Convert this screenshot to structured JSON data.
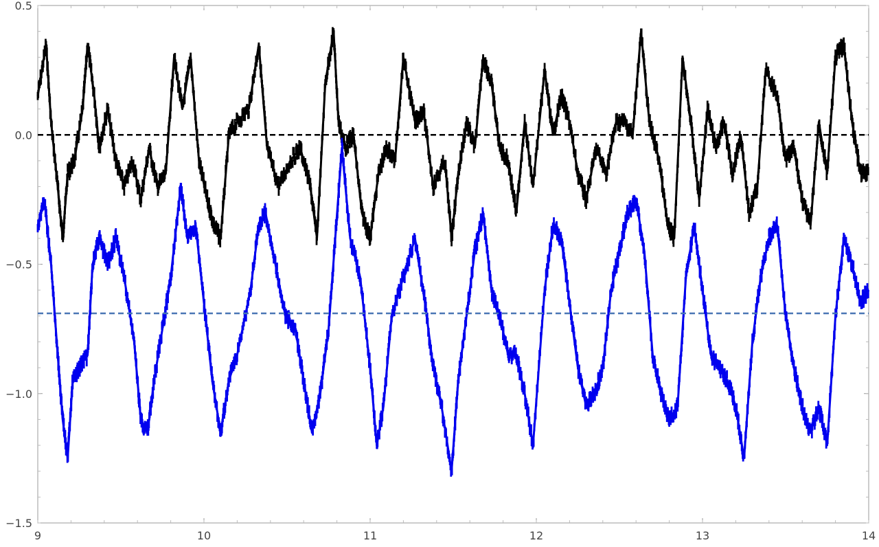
{
  "chart_data": {
    "type": "scatter",
    "title": "",
    "xlabel": "",
    "ylabel": "",
    "xlim": [
      9,
      14
    ],
    "ylim": [
      -1.5,
      0.5
    ],
    "x_ticks": [
      9,
      10,
      11,
      12,
      13,
      14
    ],
    "x_tick_labels": [
      "9",
      "10",
      "11",
      "12",
      "13",
      "14"
    ],
    "y_ticks": [
      0.5,
      0.0,
      -0.5,
      -1.0,
      -1.5
    ],
    "y_tick_labels": [
      "0.5",
      "0.0",
      "-0.5",
      "-1.0",
      "-1.5"
    ],
    "grid": false,
    "legend": "none",
    "reference_lines": [
      {
        "y": 0.0,
        "color": "#000000",
        "style": "dashed"
      },
      {
        "y": -0.69,
        "color": "#4a76b5",
        "style": "dashed"
      }
    ],
    "series": [
      {
        "color": "#000000",
        "marker": "dot",
        "x": [
          9.0,
          9.05,
          9.08,
          9.12,
          9.15,
          9.18,
          9.22,
          9.27,
          9.3,
          9.34,
          9.37,
          9.42,
          9.47,
          9.52,
          9.57,
          9.62,
          9.67,
          9.72,
          9.77,
          9.82,
          9.87,
          9.92,
          9.97,
          10.02,
          10.06,
          10.1,
          10.15,
          10.2,
          10.27,
          10.33,
          10.38,
          10.45,
          10.52,
          10.58,
          10.64,
          10.68,
          10.73,
          10.78,
          10.81,
          10.85,
          10.9,
          10.95,
          11.0,
          11.05,
          11.1,
          11.15,
          11.2,
          11.27,
          11.32,
          11.38,
          11.45,
          11.49,
          11.53,
          11.58,
          11.63,
          11.68,
          11.73,
          11.78,
          11.83,
          11.88,
          11.93,
          11.98,
          12.05,
          12.1,
          12.15,
          12.2,
          12.25,
          12.3,
          12.36,
          12.42,
          12.48,
          12.53,
          12.58,
          12.63,
          12.68,
          12.74,
          12.79,
          12.83,
          12.88,
          12.93,
          12.98,
          13.03,
          13.08,
          13.13,
          13.18,
          13.23,
          13.28,
          13.33,
          13.38,
          13.45,
          13.5,
          13.55,
          13.6,
          13.65,
          13.7,
          13.75,
          13.8,
          13.85,
          13.9,
          13.95,
          14.0
        ],
        "y": [
          0.15,
          0.35,
          0.05,
          -0.2,
          -0.4,
          -0.15,
          -0.1,
          0.1,
          0.35,
          0.15,
          -0.05,
          0.1,
          -0.1,
          -0.2,
          -0.1,
          -0.25,
          -0.05,
          -0.2,
          -0.15,
          0.3,
          0.1,
          0.3,
          -0.1,
          -0.25,
          -0.35,
          -0.4,
          0.0,
          0.05,
          0.1,
          0.35,
          -0.05,
          -0.2,
          -0.1,
          -0.05,
          -0.2,
          -0.4,
          0.2,
          0.4,
          0.05,
          -0.05,
          0.0,
          -0.3,
          -0.4,
          -0.15,
          -0.05,
          -0.1,
          0.3,
          0.05,
          0.1,
          -0.2,
          -0.1,
          -0.4,
          -0.15,
          0.05,
          -0.05,
          0.3,
          0.2,
          -0.05,
          -0.1,
          -0.3,
          0.05,
          -0.2,
          0.25,
          0.0,
          0.15,
          0.05,
          -0.15,
          -0.25,
          -0.05,
          -0.15,
          0.05,
          0.05,
          0.0,
          0.4,
          0.05,
          -0.1,
          -0.35,
          -0.4,
          0.3,
          0.05,
          -0.25,
          0.1,
          -0.05,
          0.05,
          -0.15,
          0.0,
          -0.3,
          -0.2,
          0.25,
          0.15,
          -0.1,
          -0.05,
          -0.25,
          -0.35,
          0.05,
          -0.15,
          0.3,
          0.35,
          0.05,
          -0.15,
          -0.15
        ]
      },
      {
        "color": "#0000ee",
        "marker": "dot",
        "x": [
          9.0,
          9.04,
          9.08,
          9.12,
          9.15,
          9.18,
          9.21,
          9.25,
          9.3,
          9.33,
          9.37,
          9.42,
          9.47,
          9.52,
          9.58,
          9.62,
          9.66,
          9.7,
          9.75,
          9.8,
          9.86,
          9.9,
          9.95,
          10.0,
          10.05,
          10.1,
          10.15,
          10.2,
          10.28,
          10.33,
          10.37,
          10.43,
          10.49,
          10.55,
          10.6,
          10.65,
          10.7,
          10.75,
          10.79,
          10.83,
          10.88,
          10.94,
          11.0,
          11.04,
          11.08,
          11.13,
          11.2,
          11.27,
          11.33,
          11.38,
          11.43,
          11.49,
          11.53,
          11.58,
          11.63,
          11.68,
          11.73,
          11.78,
          11.83,
          11.88,
          11.93,
          11.98,
          12.05,
          12.1,
          12.15,
          12.2,
          12.25,
          12.3,
          12.35,
          12.4,
          12.45,
          12.5,
          12.55,
          12.6,
          12.65,
          12.7,
          12.75,
          12.8,
          12.85,
          12.9,
          12.95,
          13.0,
          13.05,
          13.1,
          13.15,
          13.2,
          13.25,
          13.3,
          13.35,
          13.4,
          13.45,
          13.5,
          13.55,
          13.6,
          13.65,
          13.7,
          13.75,
          13.8,
          13.85,
          13.9,
          13.95,
          14.0
        ],
        "y": [
          -0.35,
          -0.25,
          -0.5,
          -0.85,
          -1.1,
          -1.25,
          -0.95,
          -0.9,
          -0.85,
          -0.5,
          -0.4,
          -0.5,
          -0.4,
          -0.55,
          -0.8,
          -1.1,
          -1.15,
          -0.95,
          -0.75,
          -0.55,
          -0.2,
          -0.4,
          -0.35,
          -0.65,
          -0.95,
          -1.15,
          -0.95,
          -0.85,
          -0.6,
          -0.35,
          -0.3,
          -0.5,
          -0.7,
          -0.75,
          -0.95,
          -1.15,
          -1.0,
          -0.75,
          -0.4,
          -0.05,
          -0.4,
          -0.55,
          -0.9,
          -1.2,
          -1.05,
          -0.7,
          -0.55,
          -0.4,
          -0.65,
          -0.9,
          -1.05,
          -1.3,
          -0.95,
          -0.7,
          -0.45,
          -0.3,
          -0.6,
          -0.7,
          -0.85,
          -0.85,
          -1.0,
          -1.2,
          -0.6,
          -0.35,
          -0.4,
          -0.65,
          -0.9,
          -1.05,
          -1.0,
          -0.9,
          -0.6,
          -0.45,
          -0.3,
          -0.25,
          -0.45,
          -0.85,
          -1.0,
          -1.1,
          -1.05,
          -0.55,
          -0.35,
          -0.6,
          -0.85,
          -0.9,
          -0.95,
          -1.05,
          -1.25,
          -0.8,
          -0.55,
          -0.4,
          -0.35,
          -0.7,
          -0.9,
          -1.05,
          -1.15,
          -1.05,
          -1.2,
          -0.7,
          -0.4,
          -0.5,
          -0.65,
          -0.6
        ]
      }
    ]
  }
}
